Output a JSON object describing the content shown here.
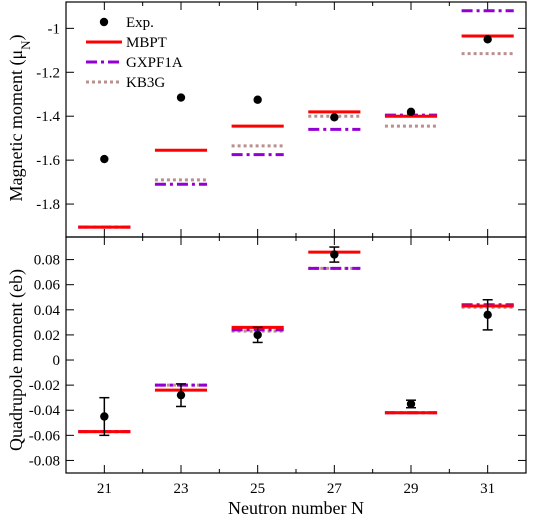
{
  "colors": {
    "exp": "#000000",
    "MBPT": "#ff0000",
    "GXPF1A": "#9400d3",
    "KB3G": "#bc8f8f"
  },
  "chart_data": [
    {
      "type": "scatter",
      "panel": "top",
      "ylabel_main": "Magnetic moment (μ",
      "ylabel_sub": "N",
      "ylabel_end": ")",
      "xlabel": "",
      "ylim": [
        -1.95,
        -0.88
      ],
      "yticks": [
        -1.8,
        -1.6,
        -1.4,
        -1.2,
        -1.0
      ],
      "ytick_labels": [
        "-1.8",
        "-1.6",
        "-1.4",
        "-1.2",
        "-1"
      ],
      "legend": {
        "placement": "top-left",
        "entries": [
          {
            "name": "Exp.",
            "style": "dot"
          },
          {
            "name": "MBPT",
            "style": "solid"
          },
          {
            "name": "GXPF1A",
            "style": "dashdot"
          },
          {
            "name": "KB3G",
            "style": "dotted"
          }
        ]
      },
      "x": [
        21,
        23,
        25,
        27,
        29,
        31
      ],
      "series": [
        {
          "name": "Exp.",
          "values": [
            -1.595,
            -1.315,
            -1.325,
            -1.405,
            -1.38,
            -1.05
          ],
          "errors": [
            0,
            0,
            0,
            0,
            0,
            0
          ]
        },
        {
          "name": "MBPT",
          "values": [
            -1.905,
            -1.555,
            -1.445,
            -1.38,
            -1.4,
            -1.035
          ]
        },
        {
          "name": "GXPF1A",
          "values": [
            -1.905,
            -1.71,
            -1.575,
            -1.46,
            -1.395,
            -0.92
          ]
        },
        {
          "name": "KB3G",
          "values": [
            -1.905,
            -1.69,
            -1.535,
            -1.4,
            -1.445,
            -1.115
          ]
        }
      ]
    },
    {
      "type": "scatter",
      "panel": "bottom",
      "ylabel": "Quadrupole moment (eb)",
      "xlabel": "Neutron number N",
      "ylim": [
        -0.09,
        0.098
      ],
      "yticks": [
        -0.08,
        -0.06,
        -0.04,
        -0.02,
        0,
        0.02,
        0.04,
        0.06,
        0.08
      ],
      "ytick_labels": [
        "-0.08",
        "-0.06",
        "-0.04",
        "-0.02",
        "0",
        "0.02",
        "0.04",
        "0.06",
        "0.08"
      ],
      "xticks": [
        21,
        23,
        25,
        27,
        29,
        31
      ],
      "xtick_labels": [
        "21",
        "23",
        "25",
        "27",
        "29",
        "31"
      ],
      "xlim": [
        20,
        32
      ],
      "x": [
        21,
        23,
        25,
        27,
        29,
        31
      ],
      "series": [
        {
          "name": "Exp.",
          "values": [
            -0.045,
            -0.028,
            0.02,
            0.084,
            -0.035,
            0.036
          ],
          "errors": [
            0.015,
            0.009,
            0.006,
            0.006,
            0.003,
            0.012
          ]
        },
        {
          "name": "MBPT",
          "values": [
            -0.057,
            -0.024,
            0.026,
            0.086,
            -0.042,
            0.043
          ]
        },
        {
          "name": "GXPF1A",
          "values": [
            -0.057,
            -0.02,
            0.024,
            0.073,
            -0.042,
            0.044
          ]
        },
        {
          "name": "KB3G",
          "values": [
            -0.057,
            -0.02,
            0.023,
            0.073,
            -0.042,
            0.042
          ]
        }
      ]
    }
  ]
}
